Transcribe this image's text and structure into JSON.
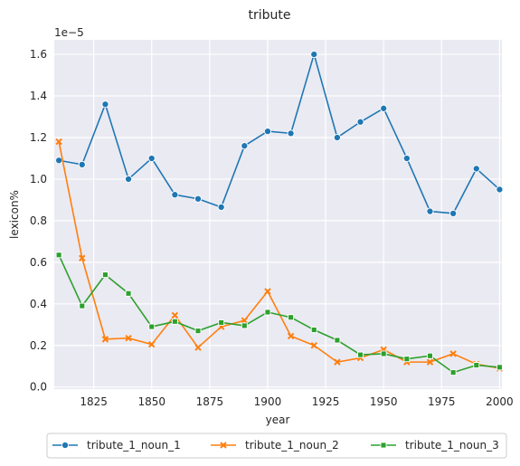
{
  "chart_data": {
    "type": "line",
    "title": "tribute",
    "xlabel": "year",
    "ylabel": "lexicon%",
    "y_offset_label": "1e−5",
    "x_ticks": [
      "1825",
      "1850",
      "1875",
      "1900",
      "1925",
      "1950",
      "1975",
      "2000"
    ],
    "y_ticks": [
      "0.0",
      "0.2",
      "0.4",
      "0.6",
      "0.8",
      "1.0",
      "1.2",
      "1.4",
      "1.6"
    ],
    "xlim": [
      1808,
      2001
    ],
    "ylim": [
      -0.01,
      1.67
    ],
    "grid": true,
    "legend_position": "bottom-center",
    "x": [
      1810,
      1820,
      1830,
      1840,
      1850,
      1860,
      1870,
      1880,
      1890,
      1900,
      1910,
      1920,
      1930,
      1940,
      1950,
      1960,
      1970,
      1980,
      1990,
      2000
    ],
    "series": [
      {
        "name": "tribute_1_noun_1",
        "color": "#1f77b4",
        "marker": "circle",
        "values": [
          1.09,
          1.07,
          1.36,
          1.0,
          1.1,
          0.925,
          0.905,
          0.865,
          1.16,
          1.23,
          1.22,
          1.6,
          1.2,
          1.275,
          1.34,
          1.1,
          0.845,
          0.835,
          1.05,
          0.95
        ]
      },
      {
        "name": "tribute_1_noun_2",
        "color": "#ff7f0e",
        "marker": "x",
        "values": [
          1.18,
          0.62,
          0.23,
          0.235,
          0.205,
          0.345,
          0.19,
          0.29,
          0.32,
          0.46,
          0.245,
          0.2,
          0.12,
          0.14,
          0.18,
          0.12,
          0.12,
          0.16,
          0.11,
          0.09
        ]
      },
      {
        "name": "tribute_1_noun_3",
        "color": "#2ca02c",
        "marker": "square",
        "values": [
          0.635,
          0.39,
          0.54,
          0.45,
          0.29,
          0.315,
          0.27,
          0.31,
          0.295,
          0.36,
          0.335,
          0.275,
          0.225,
          0.155,
          0.16,
          0.135,
          0.15,
          0.07,
          0.105,
          0.095
        ]
      }
    ]
  }
}
